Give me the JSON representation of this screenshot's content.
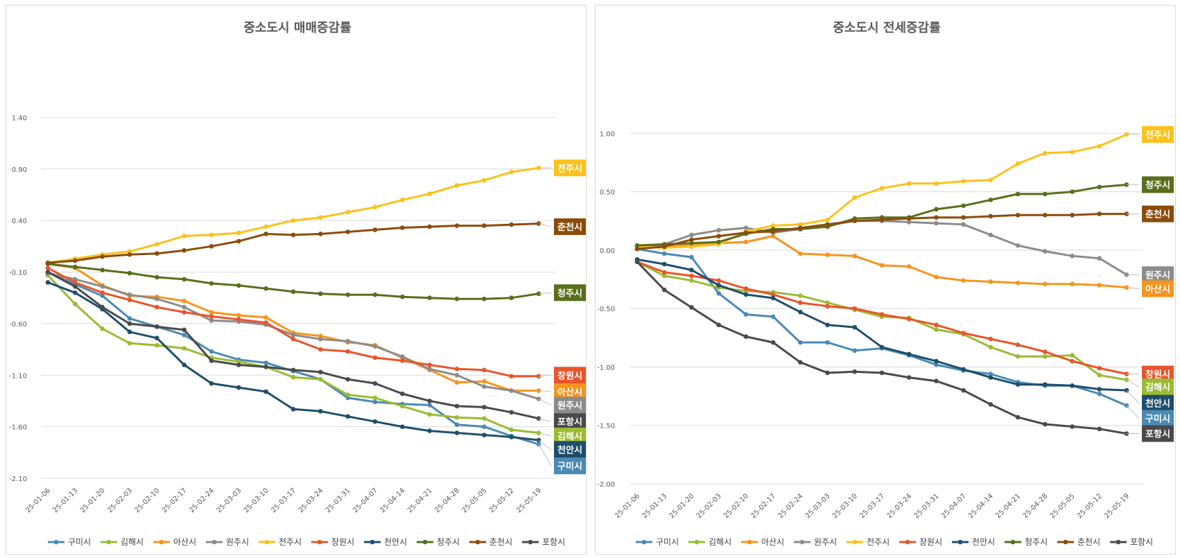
{
  "series_colors": {
    "구미시": "#4a8ab5",
    "김해시": "#9bbb33",
    "아산시": "#f7941d",
    "원주시": "#8c8c8c",
    "전주시": "#fdc11a",
    "창원시": "#e9552a",
    "천안시": "#1f4e6b",
    "청주시": "#5a6e1c",
    "춘천시": "#8b4c0b",
    "포항시": "#4a4a4a"
  },
  "chart_data": [
    {
      "type": "line",
      "title": "중소도시 매매증감률",
      "categories": [
        "25-01-06",
        "25-01-13",
        "25-01-20",
        "25-02-03",
        "25-02-10",
        "25-02-17",
        "25-02-24",
        "25-03-03",
        "25-03-10",
        "25-03-17",
        "25-03-24",
        "25-03-31",
        "25-04-07",
        "25-04-14",
        "25-04-21",
        "25-04-28",
        "25-05-05",
        "25-05-12",
        "25-05-19"
      ],
      "ylim": [
        -2.1,
        1.9
      ],
      "yticks": [
        "1.40",
        "0.90",
        "0.40",
        "-0.10",
        "-0.60",
        "-1.10",
        "-1.60",
        "-2.10"
      ],
      "legend": "bottom",
      "series": [
        {
          "name": "구미시",
          "values": [
            -0.1,
            -0.22,
            -0.33,
            -0.55,
            -0.63,
            -0.71,
            -0.87,
            -0.95,
            -0.98,
            -1.06,
            -1.14,
            -1.32,
            -1.36,
            -1.38,
            -1.39,
            -1.58,
            -1.6,
            -1.69,
            -1.77
          ]
        },
        {
          "name": "김해시",
          "values": [
            -0.13,
            -0.41,
            -0.65,
            -0.79,
            -0.81,
            -0.84,
            -0.93,
            -0.97,
            -1.02,
            -1.12,
            -1.14,
            -1.29,
            -1.32,
            -1.4,
            -1.48,
            -1.51,
            -1.52,
            -1.63,
            -1.66
          ]
        },
        {
          "name": "아산시",
          "values": [
            -0.02,
            -0.06,
            -0.23,
            -0.33,
            -0.34,
            -0.38,
            -0.49,
            -0.52,
            -0.54,
            -0.69,
            -0.72,
            -0.78,
            -0.81,
            -0.93,
            -1.05,
            -1.17,
            -1.16,
            -1.25,
            -1.25
          ]
        },
        {
          "name": "원주시",
          "values": [
            -0.11,
            -0.17,
            -0.24,
            -0.32,
            -0.36,
            -0.44,
            -0.57,
            -0.58,
            -0.61,
            -0.71,
            -0.75,
            -0.77,
            -0.82,
            -0.92,
            -1.04,
            -1.1,
            -1.21,
            -1.25,
            -1.33
          ]
        },
        {
          "name": "전주시",
          "values": [
            -0.01,
            0.03,
            0.07,
            0.1,
            0.17,
            0.25,
            0.26,
            0.28,
            0.34,
            0.4,
            0.43,
            0.48,
            0.53,
            0.6,
            0.66,
            0.74,
            0.79,
            0.87,
            0.91
          ]
        },
        {
          "name": "창원시",
          "values": [
            -0.06,
            -0.2,
            -0.3,
            -0.37,
            -0.44,
            -0.49,
            -0.53,
            -0.56,
            -0.59,
            -0.75,
            -0.85,
            -0.87,
            -0.93,
            -0.96,
            -1.0,
            -1.04,
            -1.05,
            -1.11,
            -1.11
          ]
        },
        {
          "name": "천안시",
          "values": [
            -0.2,
            -0.3,
            -0.46,
            -0.68,
            -0.74,
            -1.0,
            -1.18,
            -1.22,
            -1.26,
            -1.43,
            -1.45,
            -1.5,
            -1.55,
            -1.6,
            -1.64,
            -1.66,
            -1.68,
            -1.7,
            -1.73
          ]
        },
        {
          "name": "청주시",
          "values": [
            -0.02,
            -0.05,
            -0.08,
            -0.11,
            -0.15,
            -0.17,
            -0.21,
            -0.23,
            -0.26,
            -0.29,
            -0.31,
            -0.32,
            -0.32,
            -0.34,
            -0.35,
            -0.36,
            -0.36,
            -0.35,
            -0.31
          ]
        },
        {
          "name": "춘천시",
          "values": [
            -0.01,
            0.01,
            0.05,
            0.07,
            0.08,
            0.11,
            0.15,
            0.2,
            0.27,
            0.26,
            0.27,
            0.29,
            0.31,
            0.33,
            0.34,
            0.35,
            0.35,
            0.36,
            0.37
          ]
        },
        {
          "name": "포항시",
          "values": [
            -0.1,
            -0.24,
            -0.44,
            -0.6,
            -0.63,
            -0.66,
            -0.96,
            -1.0,
            -1.02,
            -1.05,
            -1.07,
            -1.14,
            -1.18,
            -1.28,
            -1.35,
            -1.4,
            -1.41,
            -1.46,
            -1.52
          ]
        }
      ],
      "end_labels": [
        {
          "name": "전주시",
          "y": 0.91
        },
        {
          "name": "춘천시",
          "y": 0.34
        },
        {
          "name": "청주시",
          "y": -0.3
        },
        {
          "name": "창원시",
          "y": -1.1
        },
        {
          "name": "아산시",
          "y": -1.26
        },
        {
          "name": "원주시",
          "y": -1.39
        },
        {
          "name": "포항시",
          "y": -1.55
        },
        {
          "name": "김해시",
          "y": -1.69
        },
        {
          "name": "천안시",
          "y": -1.82
        },
        {
          "name": "구미시",
          "y": -1.98
        }
      ]
    },
    {
      "type": "line",
      "title": "중소도시 전세증감률",
      "categories": [
        "25-01-06",
        "25-01-13",
        "25-01-20",
        "25-02-03",
        "25-02-10",
        "25-02-17",
        "25-02-24",
        "25-03-03",
        "25-03-10",
        "25-03-17",
        "25-03-24",
        "25-03-31",
        "25-04-07",
        "25-04-14",
        "25-04-21",
        "25-04-28",
        "25-05-05",
        "25-05-12",
        "25-05-19"
      ],
      "ylim": [
        -2.0,
        1.5
      ],
      "yticks": [
        "1.00",
        "0.50",
        "0.00",
        "-0.50",
        "-1.00",
        "-1.50",
        "-2.00"
      ],
      "legend": "bottom",
      "series": [
        {
          "name": "구미시",
          "values": [
            0.01,
            -0.03,
            -0.06,
            -0.37,
            -0.55,
            -0.57,
            -0.79,
            -0.79,
            -0.86,
            -0.84,
            -0.9,
            -0.98,
            -1.03,
            -1.06,
            -1.13,
            -1.16,
            -1.16,
            -1.23,
            -1.33
          ]
        },
        {
          "name": "김해시",
          "values": [
            -0.1,
            -0.22,
            -0.26,
            -0.32,
            -0.35,
            -0.36,
            -0.39,
            -0.45,
            -0.51,
            -0.57,
            -0.58,
            -0.68,
            -0.72,
            -0.83,
            -0.91,
            -0.91,
            -0.9,
            -1.07,
            -1.11
          ]
        },
        {
          "name": "아산시",
          "values": [
            0.02,
            0.04,
            0.04,
            0.06,
            0.07,
            0.12,
            -0.03,
            -0.04,
            -0.05,
            -0.13,
            -0.14,
            -0.23,
            -0.26,
            -0.27,
            -0.28,
            -0.29,
            -0.29,
            -0.3,
            -0.32
          ]
        },
        {
          "name": "원주시",
          "values": [
            0.02,
            0.05,
            0.13,
            0.17,
            0.19,
            0.15,
            0.18,
            0.21,
            0.25,
            0.25,
            0.24,
            0.23,
            0.22,
            0.13,
            0.04,
            -0.01,
            -0.05,
            -0.07,
            -0.21
          ]
        },
        {
          "name": "전주시",
          "values": [
            0.03,
            0.02,
            0.03,
            0.05,
            0.16,
            0.21,
            0.22,
            0.26,
            0.45,
            0.53,
            0.57,
            0.57,
            0.59,
            0.6,
            0.74,
            0.83,
            0.84,
            0.89,
            0.99
          ]
        },
        {
          "name": "창원시",
          "values": [
            -0.1,
            -0.19,
            -0.22,
            -0.26,
            -0.33,
            -0.38,
            -0.45,
            -0.48,
            -0.5,
            -0.55,
            -0.59,
            -0.64,
            -0.71,
            -0.76,
            -0.81,
            -0.87,
            -0.95,
            -1.01,
            -1.06
          ]
        },
        {
          "name": "천안시",
          "values": [
            -0.08,
            -0.12,
            -0.17,
            -0.3,
            -0.38,
            -0.41,
            -0.53,
            -0.64,
            -0.66,
            -0.83,
            -0.89,
            -0.95,
            -1.02,
            -1.09,
            -1.15,
            -1.15,
            -1.16,
            -1.19,
            -1.2
          ]
        },
        {
          "name": "청주시",
          "values": [
            0.04,
            0.05,
            0.06,
            0.07,
            0.14,
            0.18,
            0.18,
            0.2,
            0.27,
            0.28,
            0.28,
            0.35,
            0.38,
            0.43,
            0.48,
            0.48,
            0.5,
            0.54,
            0.56
          ]
        },
        {
          "name": "춘천시",
          "values": [
            0.01,
            0.03,
            0.09,
            0.12,
            0.15,
            0.16,
            0.19,
            0.22,
            0.25,
            0.26,
            0.27,
            0.28,
            0.28,
            0.29,
            0.3,
            0.3,
            0.3,
            0.31,
            0.31
          ]
        },
        {
          "name": "포항시",
          "values": [
            -0.1,
            -0.34,
            -0.49,
            -0.64,
            -0.74,
            -0.79,
            -0.96,
            -1.05,
            -1.04,
            -1.05,
            -1.09,
            -1.12,
            -1.2,
            -1.32,
            -1.43,
            -1.49,
            -1.51,
            -1.53,
            -1.57
          ]
        }
      ],
      "end_labels": [
        {
          "name": "전주시",
          "y": 0.99
        },
        {
          "name": "청주시",
          "y": 0.56
        },
        {
          "name": "춘천시",
          "y": 0.31
        },
        {
          "name": "원주시",
          "y": -0.21
        },
        {
          "name": "아산시",
          "y": -0.33
        },
        {
          "name": "창원시",
          "y": -1.06
        },
        {
          "name": "김해시",
          "y": -1.17
        },
        {
          "name": "천안시",
          "y": -1.31
        },
        {
          "name": "구미시",
          "y": -1.44
        },
        {
          "name": "포항시",
          "y": -1.57
        }
      ]
    }
  ]
}
